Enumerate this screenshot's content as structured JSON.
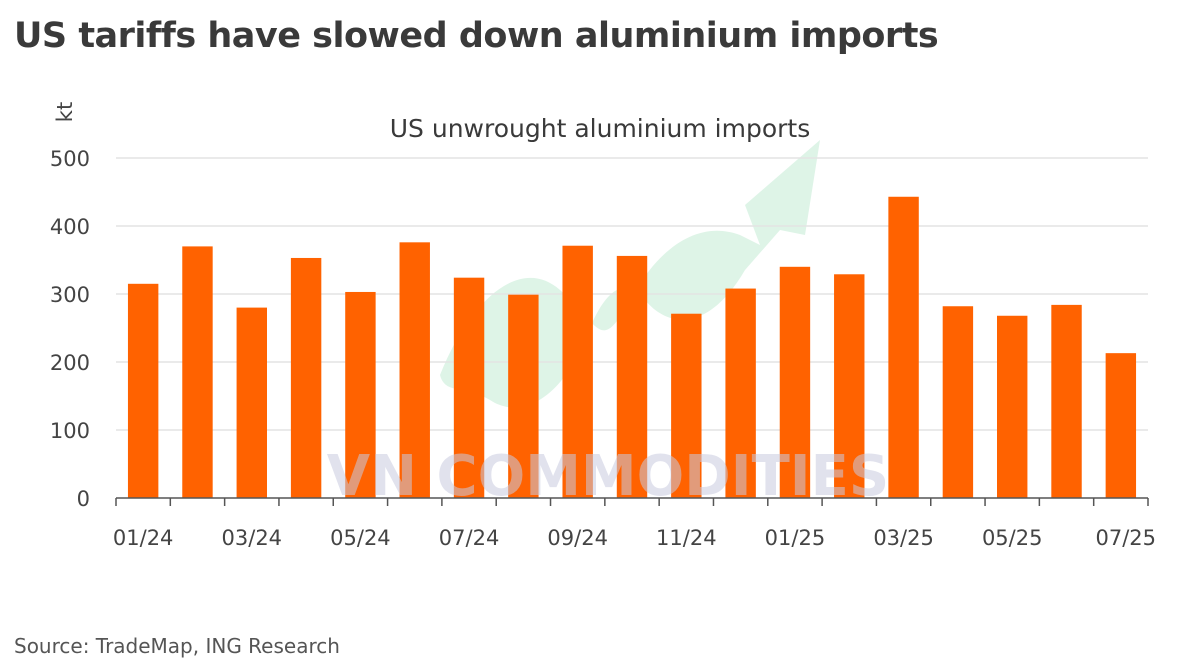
{
  "title": "US tariffs have slowed down aluminium imports",
  "source": "Source: TradeMap, ING Research",
  "watermark": "VN COMMODITIES",
  "colors": {
    "bar": "#ff6200",
    "grid": "#e4e4e4",
    "axis": "#555555",
    "arrow": "#c8ecd7"
  },
  "chart_data": {
    "type": "bar",
    "title": "US unwrought aluminium imports",
    "xlabel": "",
    "ylabel": "kt",
    "ylim": [
      0,
      500
    ],
    "yticks": [
      0,
      100,
      200,
      300,
      400,
      500
    ],
    "grid": true,
    "categories": [
      "01/24",
      "02/24",
      "03/24",
      "04/24",
      "05/24",
      "06/24",
      "07/24",
      "08/24",
      "09/24",
      "10/24",
      "11/24",
      "12/24",
      "01/25",
      "02/25",
      "03/25",
      "04/25",
      "05/25",
      "06/25",
      "07/25"
    ],
    "x_tick_labels": [
      "01/24",
      "03/24",
      "05/24",
      "07/24",
      "09/24",
      "11/24",
      "01/25",
      "03/25",
      "05/25",
      "07/25"
    ],
    "values": [
      315,
      370,
      280,
      353,
      303,
      376,
      324,
      299,
      371,
      356,
      271,
      308,
      340,
      329,
      443,
      282,
      268,
      284,
      213
    ]
  }
}
